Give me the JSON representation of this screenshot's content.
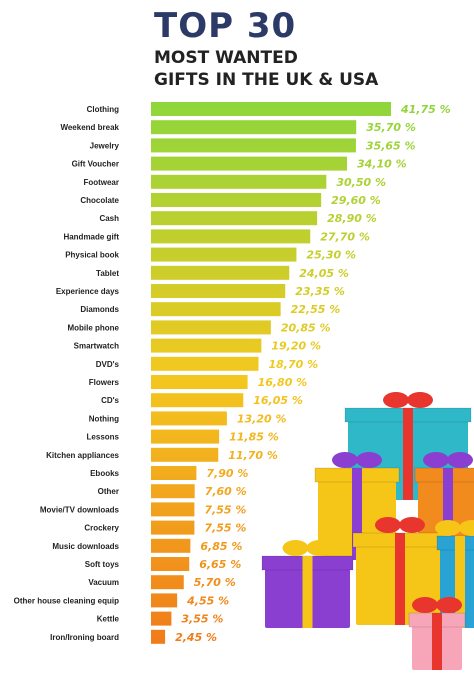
{
  "header": {
    "line1": "TOP 30",
    "line2": "MOST WANTED",
    "line3": "GIFTS IN THE UK & USA"
  },
  "chart_data": {
    "type": "bar",
    "orientation": "horizontal",
    "title": "TOP 30 MOST WANTED GIFTS IN THE UK & USA",
    "categories": [
      "Clothing",
      "Weekend break",
      "Jewelry",
      "Gift Voucher",
      "Footwear",
      "Chocolate",
      "Cash",
      "Handmade gift",
      "Physical book",
      "Tablet",
      "Experience days",
      "Diamonds",
      "Mobile phone",
      "Smartwatch",
      "DVD's",
      "Flowers",
      "CD's",
      "Nothing",
      "Lessons",
      "Kitchen appliances",
      "Ebooks",
      "Other",
      "Movie/TV downloads",
      "Crockery",
      "Music downloads",
      "Soft toys",
      "Vacuum",
      "Other house cleaning equip",
      "Kettle",
      "Iron/Ironing board"
    ],
    "values": [
      41.75,
      35.7,
      35.65,
      34.1,
      30.5,
      29.6,
      28.9,
      27.7,
      25.3,
      24.05,
      23.35,
      22.55,
      20.85,
      19.2,
      18.7,
      16.8,
      16.05,
      13.2,
      11.85,
      11.7,
      7.9,
      7.6,
      7.55,
      7.55,
      6.85,
      6.65,
      5.7,
      4.55,
      3.55,
      2.45
    ],
    "value_labels": [
      "41,75 %",
      "35,70 %",
      "35,65 %",
      "34,10 %",
      "30,50 %",
      "29,60 %",
      "28,90 %",
      "27,70 %",
      "25,30 %",
      "24,05 %",
      "23,35 %",
      "22,55 %",
      "20,85 %",
      "19,20 %",
      "18,70 %",
      "16,80 %",
      "16,05 %",
      "13,20 %",
      "11,85 %",
      "11,70 %",
      "7,90 %",
      "7,60 %",
      "7,55 %",
      "7,55 %",
      "6,85 %",
      "6,65 %",
      "5,70 %",
      "4,55 %",
      "3,55 %",
      "2,45 %"
    ],
    "xlim": [
      0,
      41.75
    ],
    "grid": false,
    "legend": "none",
    "colors": {
      "top": "#8ed63c",
      "middle": "#f3c81f",
      "bottom": "#f07a1a"
    }
  },
  "decoration": {
    "gift_box_colors": [
      "#2fb8c8",
      "#f5c518",
      "#e8352e",
      "#8a3fd1",
      "#f28b1e",
      "#f6a6b8",
      "#29a3d4"
    ]
  }
}
